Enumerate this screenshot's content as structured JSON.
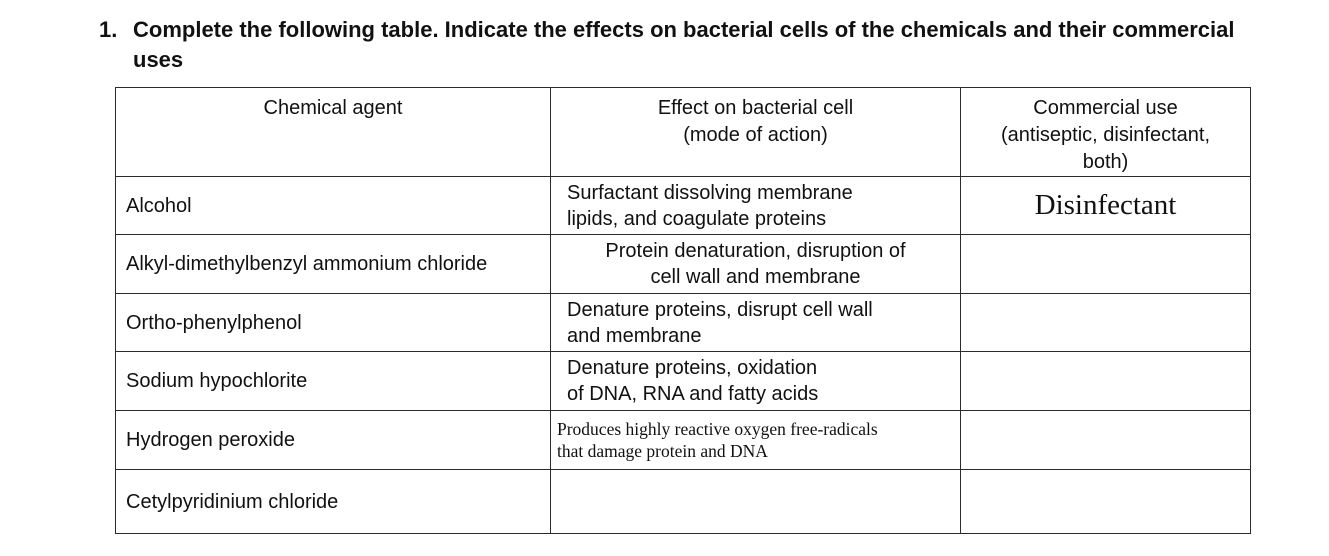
{
  "question": {
    "number": "1.",
    "text": "Complete the following table. Indicate the effects on bacterial cells of the chemicals and their commercial\nuses"
  },
  "table": {
    "headers": {
      "chemical": "Chemical agent",
      "effect": "Effect on bacterial cell\n(mode of action)",
      "use": "Commercial use\n(antiseptic, disinfectant,\nboth)"
    },
    "rows": [
      {
        "chemical": "Alcohol",
        "effect": "Surfactant dissolving membrane\nlipids, and coagulate proteins",
        "use": "Disinfectant"
      },
      {
        "chemical": "Alkyl-dimethylbenzyl ammonium chloride",
        "effect": "Protein denaturation, disruption of\ncell wall and membrane",
        "use": ""
      },
      {
        "chemical": "Ortho-phenylphenol",
        "effect": "Denature proteins, disrupt cell wall\nand membrane",
        "use": ""
      },
      {
        "chemical": "Sodium hypochlorite",
        "effect": "Denature proteins, oxidation\nof DNA, RNA and fatty acids",
        "use": ""
      },
      {
        "chemical": "Hydrogen peroxide",
        "effect": "Produces highly reactive oxygen free-radicals\nthat damage protein and DNA",
        "use": ""
      },
      {
        "chemical": "Cetylpyridinium chloride",
        "effect": "",
        "use": ""
      }
    ]
  }
}
